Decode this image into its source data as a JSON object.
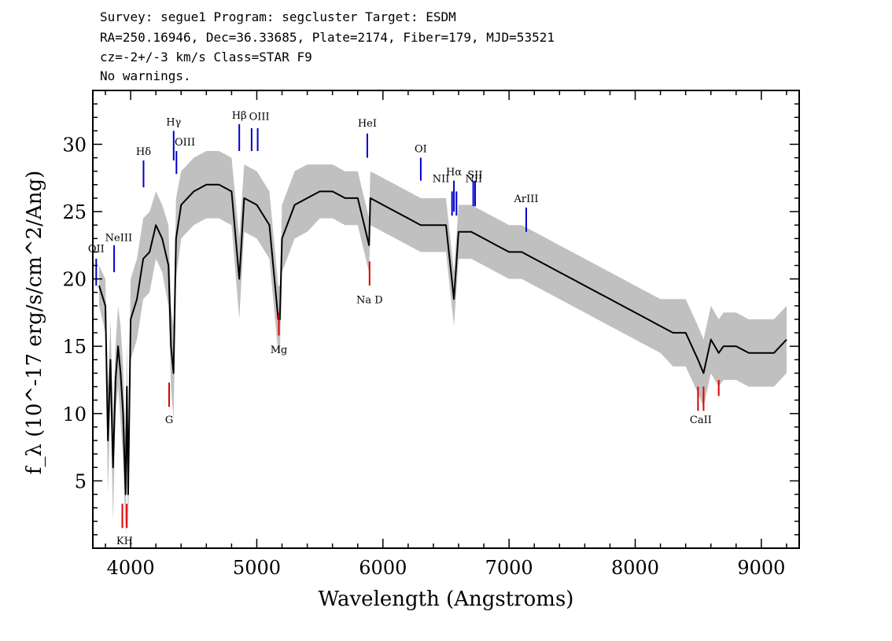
{
  "header": {
    "line1": "Survey: segue1 Program: segcluster Target: ESDM",
    "line2": "RA=250.16946, Dec=36.33685, Plate=2174, Fiber=179, MJD=53521",
    "line3": "cz=-2+/-3 km/s Class=STAR F9",
    "line4": "No warnings."
  },
  "chart_data": {
    "type": "line",
    "xlabel": "Wavelength (Angstroms)",
    "ylabel": "f_λ (10^-17 erg/s/cm^2/Ang)",
    "xlim": [
      3700,
      9300
    ],
    "ylim": [
      0,
      34
    ],
    "xticks": [
      4000,
      5000,
      6000,
      7000,
      8000,
      9000
    ],
    "yticks": [
      5,
      10,
      15,
      20,
      25,
      30
    ],
    "grid": false,
    "colors": {
      "spectrum": "#000000",
      "error_band": "#c0c0c0",
      "emission_marker": "#0000cc",
      "absorption_marker": "#dd0000"
    },
    "series": [
      {
        "x": [
          3750,
          3800,
          3820,
          3840,
          3860,
          3880,
          3900,
          3920,
          3940,
          3960,
          3970,
          3980,
          4000,
          4050,
          4100,
          4150,
          4200,
          4250,
          4300,
          4320,
          4340,
          4360,
          4400,
          4500,
          4600,
          4700,
          4800,
          4861,
          4900,
          5000,
          5100,
          5170,
          5183,
          5200,
          5300,
          5400,
          5500,
          5600,
          5700,
          5800,
          5890,
          5900,
          6000,
          6100,
          6200,
          6300,
          6400,
          6500,
          6563,
          6600,
          6700,
          6800,
          6900,
          7000,
          7100,
          7200,
          7300,
          7400,
          7500,
          7600,
          7700,
          7800,
          7900,
          8000,
          8100,
          8200,
          8300,
          8400,
          8498,
          8542,
          8600,
          8662,
          8700,
          8800,
          8900,
          9000,
          9100,
          9200
        ],
        "y": [
          19.5,
          18.0,
          8.0,
          14.0,
          6.0,
          12.5,
          15.0,
          13.0,
          10.0,
          4.0,
          12.0,
          4.0,
          17.0,
          18.5,
          21.5,
          22.0,
          24.0,
          23.0,
          21.0,
          15.0,
          13.0,
          23.0,
          25.5,
          26.5,
          27.0,
          27.0,
          26.5,
          20.0,
          26.0,
          25.5,
          24.0,
          17.0,
          17.0,
          23.0,
          25.5,
          26.0,
          26.5,
          26.5,
          26.0,
          26.0,
          22.5,
          26.0,
          25.5,
          25.0,
          24.5,
          24.0,
          24.0,
          24.0,
          18.5,
          23.5,
          23.5,
          23.0,
          22.5,
          22.0,
          22.0,
          21.5,
          21.0,
          20.5,
          20.0,
          19.5,
          19.0,
          18.5,
          18.0,
          17.5,
          17.0,
          16.5,
          16.0,
          16.0,
          14.0,
          13.0,
          15.5,
          14.5,
          15.0,
          15.0,
          14.5,
          14.5,
          14.5,
          15.5
        ]
      }
    ],
    "error_band": {
      "upper": [
        21.0,
        20.0,
        12.0,
        17.0,
        10.0,
        15.0,
        18.0,
        16.5,
        13.5,
        8.0,
        15.5,
        7.5,
        20.0,
        21.5,
        24.5,
        25.0,
        26.5,
        25.5,
        24.0,
        18.0,
        16.5,
        26.0,
        28.0,
        29.0,
        29.5,
        29.5,
        29.0,
        23.0,
        28.5,
        28.0,
        26.5,
        19.5,
        19.5,
        25.5,
        28.0,
        28.5,
        28.5,
        28.5,
        28.0,
        28.0,
        24.5,
        28.0,
        27.5,
        27.0,
        26.5,
        26.0,
        26.0,
        26.0,
        20.5,
        25.5,
        25.5,
        25.0,
        24.5,
        24.0,
        24.0,
        23.5,
        23.0,
        22.5,
        22.0,
        21.5,
        21.0,
        20.5,
        20.0,
        19.5,
        19.0,
        18.5,
        18.5,
        18.5,
        16.5,
        15.5,
        18.0,
        17.0,
        17.5,
        17.5,
        17.0,
        17.0,
        17.0,
        18.0
      ],
      "lower": [
        18.0,
        16.0,
        4.0,
        11.0,
        2.0,
        10.0,
        12.0,
        9.5,
        6.5,
        1.0,
        8.5,
        1.0,
        14.0,
        15.5,
        18.5,
        19.0,
        21.5,
        20.5,
        18.0,
        12.0,
        9.5,
        20.0,
        23.0,
        24.0,
        24.5,
        24.5,
        24.0,
        17.0,
        23.5,
        23.0,
        21.5,
        14.5,
        14.5,
        20.5,
        23.0,
        23.5,
        24.5,
        24.5,
        24.0,
        24.0,
        20.5,
        24.0,
        23.5,
        23.0,
        22.5,
        22.0,
        22.0,
        22.0,
        16.5,
        21.5,
        21.5,
        21.0,
        20.5,
        20.0,
        20.0,
        19.5,
        19.0,
        18.5,
        18.0,
        17.5,
        17.0,
        16.5,
        16.0,
        15.5,
        15.0,
        14.5,
        13.5,
        13.5,
        11.5,
        10.5,
        13.0,
        12.0,
        12.5,
        12.5,
        12.0,
        12.0,
        12.0,
        13.0
      ]
    },
    "emission_lines": [
      {
        "label": "OII",
        "x": 3727,
        "y1": 19.5,
        "y2": 21.5
      },
      {
        "label": "NeIII",
        "x": 3869,
        "y1": 20.5,
        "y2": 22.5
      },
      {
        "label": "Hδ",
        "x": 4102,
        "y1": 26.8,
        "y2": 28.8
      },
      {
        "label": "Hγ",
        "x": 4341,
        "y1": 28.8,
        "y2": 31.0
      },
      {
        "label": "OIII",
        "x": 4363,
        "y1": 27.8,
        "y2": 29.5
      },
      {
        "label": "Hβ",
        "x": 4861,
        "y1": 29.5,
        "y2": 31.5
      },
      {
        "label": "OIII",
        "x": 4959,
        "y1": 29.5,
        "y2": 31.2
      },
      {
        "label": "OIII",
        "x": 5007,
        "y1": 29.5,
        "y2": 31.2
      },
      {
        "label": "HeI",
        "x": 5876,
        "y1": 29.0,
        "y2": 30.8
      },
      {
        "label": "OI",
        "x": 6300,
        "y1": 27.3,
        "y2": 29.0
      },
      {
        "label": "NII",
        "x": 6548,
        "y1": 24.7,
        "y2": 26.5
      },
      {
        "label": "Hα",
        "x": 6563,
        "y1": 25.0,
        "y2": 27.3
      },
      {
        "label": "NII",
        "x": 6583,
        "y1": 24.7,
        "y2": 26.5
      },
      {
        "label": "SII",
        "x": 6716,
        "y1": 25.4,
        "y2": 27.3
      },
      {
        "label": "SII",
        "x": 6731,
        "y1": 25.4,
        "y2": 27.3
      },
      {
        "label": "ArIII",
        "x": 7136,
        "y1": 23.5,
        "y2": 25.3
      }
    ],
    "absorption_lines": [
      {
        "label": "K",
        "x": 3934,
        "y1": 1.5,
        "y2": 3.3
      },
      {
        "label": "H",
        "x": 3969,
        "y1": 1.5,
        "y2": 3.3
      },
      {
        "label": "G",
        "x": 4305,
        "y1": 10.5,
        "y2": 12.3
      },
      {
        "label": "Mg",
        "x": 5175,
        "y1": 15.8,
        "y2": 17.5
      },
      {
        "label": "Na D",
        "x": 5894,
        "y1": 19.5,
        "y2": 21.3
      },
      {
        "label": "CaII",
        "x": 8498,
        "y1": 10.2,
        "y2": 12.0
      },
      {
        "label": "CaII",
        "x": 8542,
        "y1": 10.2,
        "y2": 12.0
      },
      {
        "label": "CaII",
        "x": 8662,
        "y1": 11.3,
        "y2": 12.5
      }
    ],
    "line_label_texts": [
      {
        "text": "OII",
        "x": 3727,
        "y": 22.0
      },
      {
        "text": "NeIII",
        "x": 3905,
        "y": 22.8
      },
      {
        "text": "Hδ",
        "x": 4102,
        "y": 29.2
      },
      {
        "text": "Hγ",
        "x": 4341,
        "y": 31.4
      },
      {
        "text": "OIII",
        "x": 4430,
        "y": 29.9
      },
      {
        "text": "Hβ",
        "x": 4861,
        "y": 31.9
      },
      {
        "text": "OIII",
        "x": 5020,
        "y": 31.8
      },
      {
        "text": "HeI",
        "x": 5876,
        "y": 31.3
      },
      {
        "text": "OI",
        "x": 6300,
        "y": 29.4
      },
      {
        "text": "NII",
        "x": 6460,
        "y": 27.2
      },
      {
        "text": "Hα",
        "x": 6563,
        "y": 27.7
      },
      {
        "text": "SII",
        "x": 6730,
        "y": 27.5
      },
      {
        "text": "NII",
        "x": 6720,
        "y": 27.2
      },
      {
        "text": "ArIII",
        "x": 7136,
        "y": 25.7
      },
      {
        "text": "KH",
        "x": 3952,
        "y": 0.3
      },
      {
        "text": "G",
        "x": 4305,
        "y": 9.3
      },
      {
        "text": "Mg",
        "x": 5175,
        "y": 14.5
      },
      {
        "text": "Na D",
        "x": 5894,
        "y": 18.2
      },
      {
        "text": "CaII",
        "x": 8520,
        "y": 9.3
      }
    ]
  }
}
